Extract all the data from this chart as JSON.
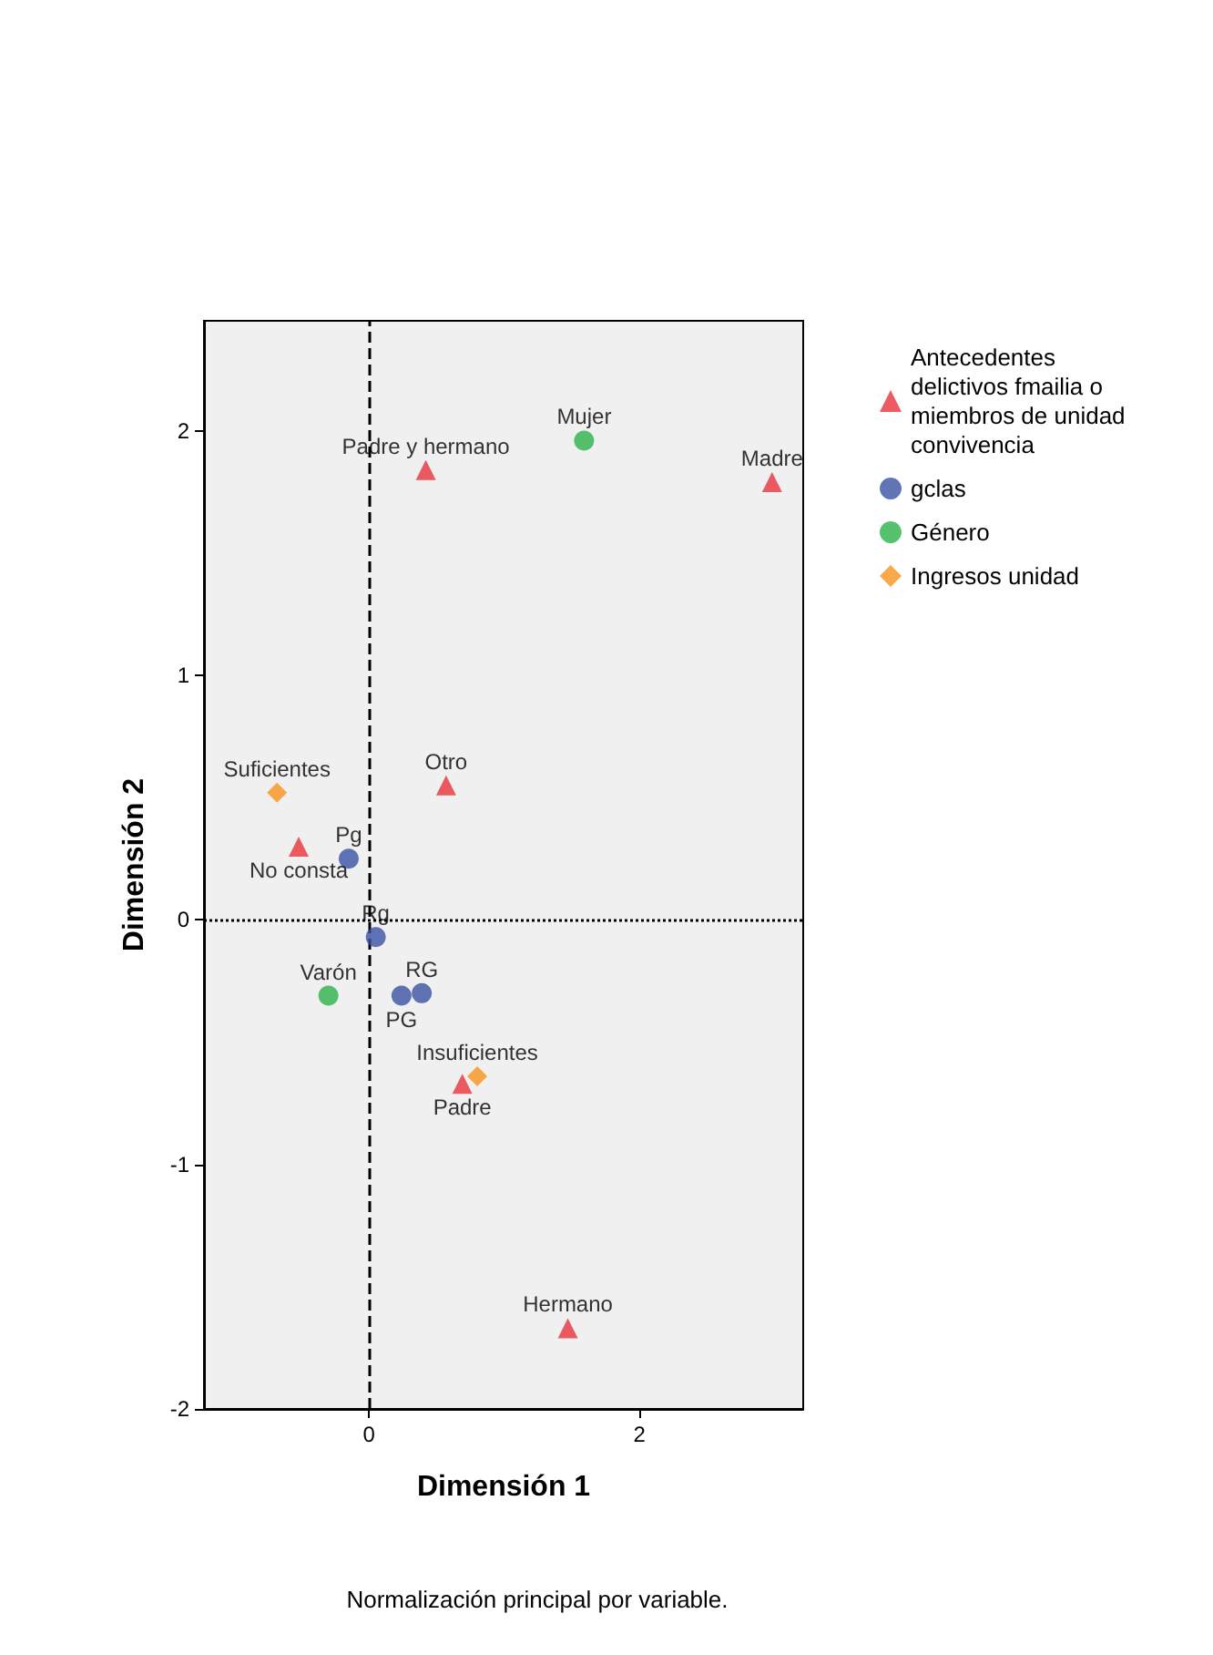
{
  "chart_data": {
    "type": "scatter",
    "xlabel": "Dimensión 1",
    "ylabel": "Dimensión 2",
    "xlim": [
      -1.22,
      3.21
    ],
    "xticks": [
      0,
      2
    ],
    "ylim": [
      -2,
      2.45
    ],
    "yticks": [
      -2,
      -1,
      0,
      1,
      2
    ],
    "grid": false,
    "legend": "top right",
    "series": [
      {
        "name": "Antecedentes delictivos fmailia o miembros de unidad convivencia",
        "color": "#e8333b",
        "marker": "triangle",
        "x": [
          0.42,
          2.98,
          0.57,
          -0.52,
          0.69,
          1.47
        ],
        "values": [
          1.84,
          1.79,
          0.55,
          0.3,
          -0.67,
          -1.67
        ]
      },
      {
        "name": "gclas",
        "color": "#3a53a4",
        "x": [
          -0.15,
          0.05,
          0.39,
          0.24
        ],
        "values": [
          0.25,
          -0.07,
          -0.3,
          -0.31
        ]
      },
      {
        "name": "Género",
        "color": "#2db34a",
        "marker": "circle",
        "x": [
          1.59,
          -0.3
        ],
        "values": [
          1.96,
          -0.31
        ]
      },
      {
        "name": "Ingresos unidad",
        "color": "#f7941d",
        "marker": "diamond",
        "x": [
          -0.68,
          0.8
        ],
        "values": [
          0.52,
          -0.64
        ]
      }
    ],
    "ref_lines": [
      {
        "axis": "x",
        "value": 0,
        "line_style": "dashed"
      },
      {
        "axis": "y",
        "value": 0,
        "line_style": "dotted"
      }
    ],
    "annotations": [
      {
        "text": "Padre y hermano",
        "x": 0.42,
        "y": 1.84
      },
      {
        "text": "Madre",
        "x": 2.98,
        "y": 1.79
      },
      {
        "text": "Otro",
        "x": 0.57,
        "y": 0.55
      },
      {
        "text": "No consta",
        "x": -0.52,
        "y": 0.3
      },
      {
        "text": "Padre",
        "x": 0.69,
        "y": -0.67
      },
      {
        "text": "Hermano",
        "x": 1.47,
        "y": -1.67
      },
      {
        "text": "Pg",
        "x": -0.15,
        "y": 0.25
      },
      {
        "text": "Rg",
        "x": 0.05,
        "y": -0.07
      },
      {
        "text": "RG",
        "x": 0.39,
        "y": -0.3
      },
      {
        "text": "PG",
        "x": 0.24,
        "y": -0.31
      },
      {
        "text": "Mujer",
        "x": 1.59,
        "y": 1.96
      },
      {
        "text": "Varón",
        "x": -0.3,
        "y": -0.31
      },
      {
        "text": "Suficientes",
        "x": -0.68,
        "y": 0.52
      },
      {
        "text": "Insuficientes",
        "x": 0.8,
        "y": -0.64
      },
      "Normalización principal por variable."
    ]
  }
}
